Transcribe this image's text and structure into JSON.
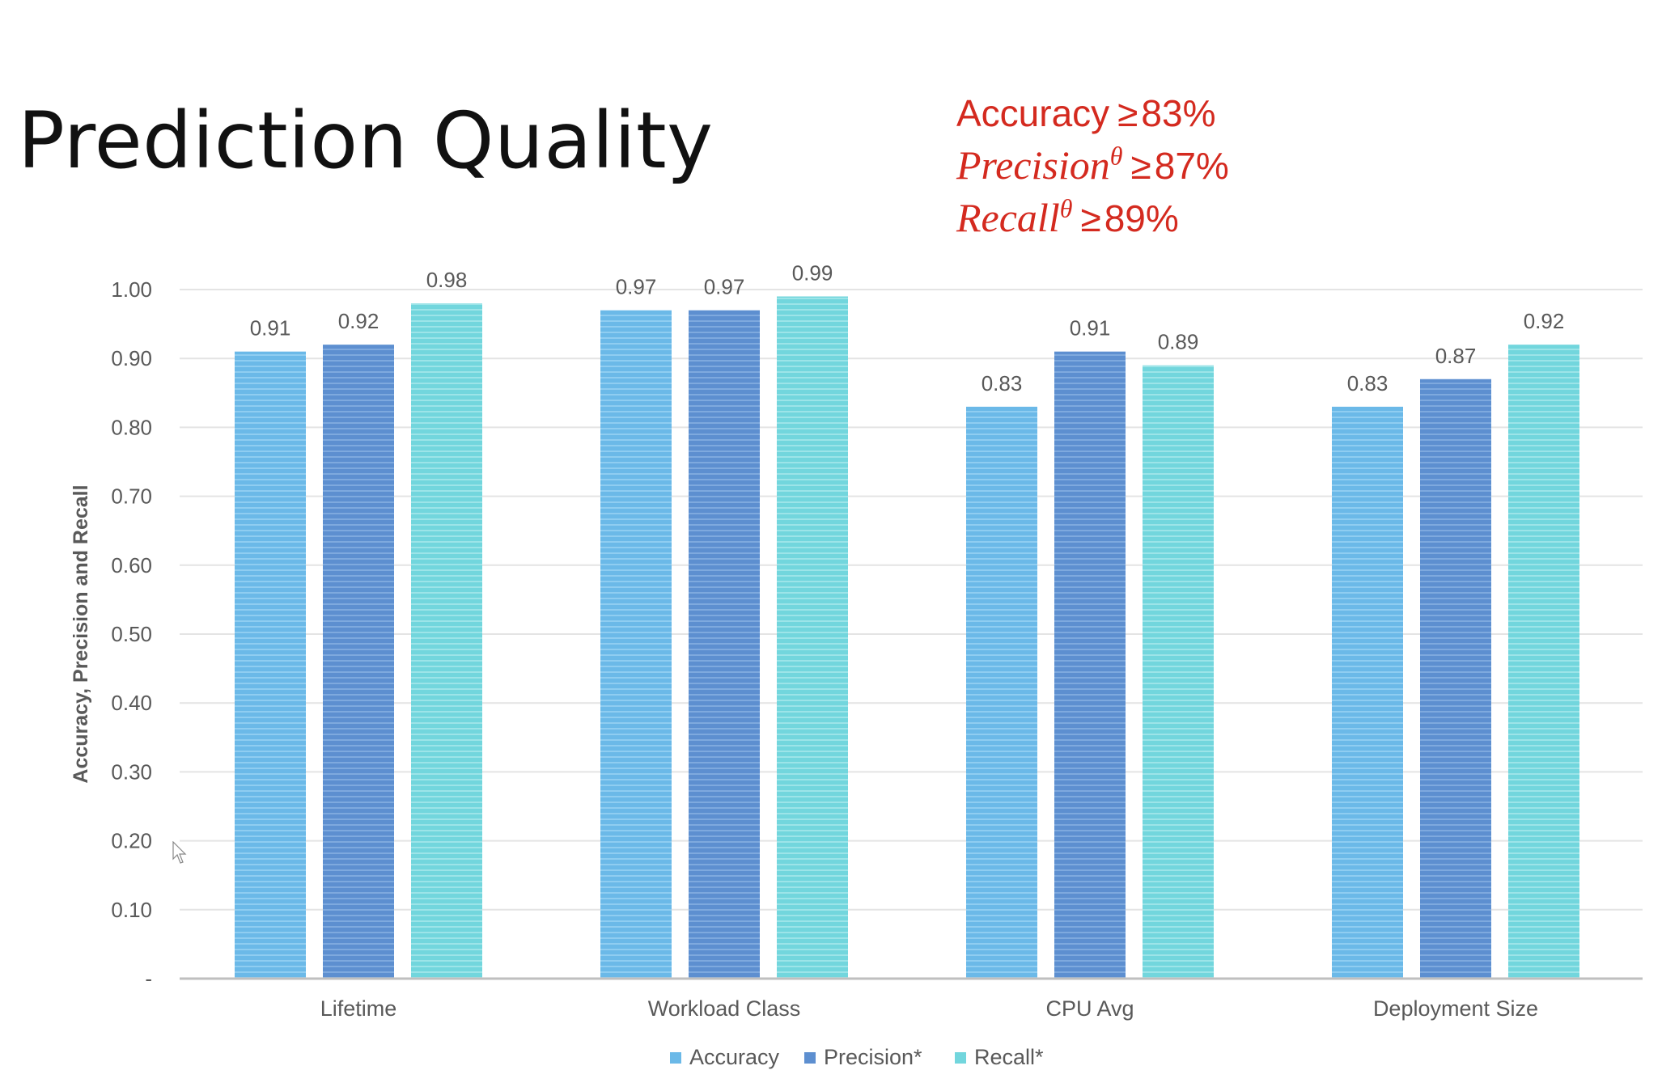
{
  "title": "Prediction Quality",
  "metrics": [
    {
      "name": "Accuracy",
      "theta": "",
      "op": "≥",
      "value": "83%",
      "italic": false
    },
    {
      "name": "Precision",
      "theta": "θ",
      "op": "≥",
      "value": "87%",
      "italic": true
    },
    {
      "name": "Recall",
      "theta": "θ",
      "op": "≥",
      "value": "89%",
      "italic": true
    }
  ],
  "colors": {
    "title": "#111111",
    "metrics": "#d42a1f",
    "accuracy": "#6bb9e8",
    "precision": "#5d8fd0",
    "recall": "#72d6dd",
    "grid": "#e4e4e4",
    "axis_text": "#595959"
  },
  "chart_data": {
    "type": "bar",
    "categories": [
      "Lifetime",
      "Workload Class",
      "CPU Avg",
      "Deployment Size"
    ],
    "series": [
      {
        "name": "Accuracy",
        "values": [
          0.91,
          0.97,
          0.83,
          0.83
        ]
      },
      {
        "name": "Precision*",
        "values": [
          0.92,
          0.97,
          0.91,
          0.87
        ]
      },
      {
        "name": "Recall*",
        "values": [
          0.98,
          0.99,
          0.89,
          0.92
        ]
      }
    ],
    "ylabel": "Accuracy, Precision and Recall",
    "ylim": [
      0,
      1.0
    ],
    "yticks": [
      "-",
      "0.10",
      "0.20",
      "0.30",
      "0.40",
      "0.50",
      "0.60",
      "0.70",
      "0.80",
      "0.90",
      "1.00"
    ],
    "value_labels": true,
    "grid": true,
    "legend_position": "bottom-center"
  }
}
